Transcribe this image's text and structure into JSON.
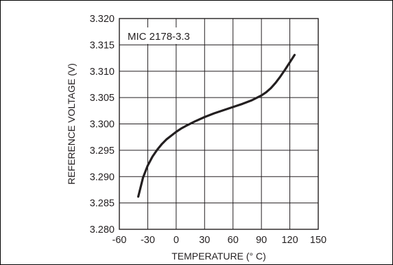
{
  "chart_data": {
    "type": "line",
    "title": "",
    "annotation": "MIC 2178-3.3",
    "xlabel": "TEMPERATURE (° C)",
    "ylabel": "REFERENCE VOLTAGE (V)",
    "xlim": [
      -60,
      150
    ],
    "ylim": [
      3.28,
      3.32
    ],
    "xticks": [
      "-60",
      "-30",
      "0",
      "30",
      "60",
      "90",
      "120",
      "150"
    ],
    "yticks": [
      "3.280",
      "3.285",
      "3.290",
      "3.295",
      "3.300",
      "3.305",
      "3.310",
      "3.315",
      "3.320"
    ],
    "grid": true,
    "series": [
      {
        "x": [
          -40,
          -35,
          -30,
          -25,
          -20,
          -15,
          -10,
          -5,
          0,
          5,
          10,
          20,
          30,
          40,
          50,
          60,
          70,
          80,
          90,
          95,
          100,
          105,
          110,
          115,
          120,
          125
        ],
        "y": [
          3.2862,
          3.2898,
          3.2921,
          3.2938,
          3.2951,
          3.2962,
          3.2971,
          3.2978,
          3.2985,
          3.2991,
          3.2996,
          3.3005,
          3.3013,
          3.302,
          3.3026,
          3.3032,
          3.3038,
          3.3045,
          3.3054,
          3.306,
          3.3068,
          3.3078,
          3.309,
          3.3103,
          3.3117,
          3.3131
        ]
      }
    ],
    "line_color": "#231f20",
    "grid_color": "#231f20"
  }
}
